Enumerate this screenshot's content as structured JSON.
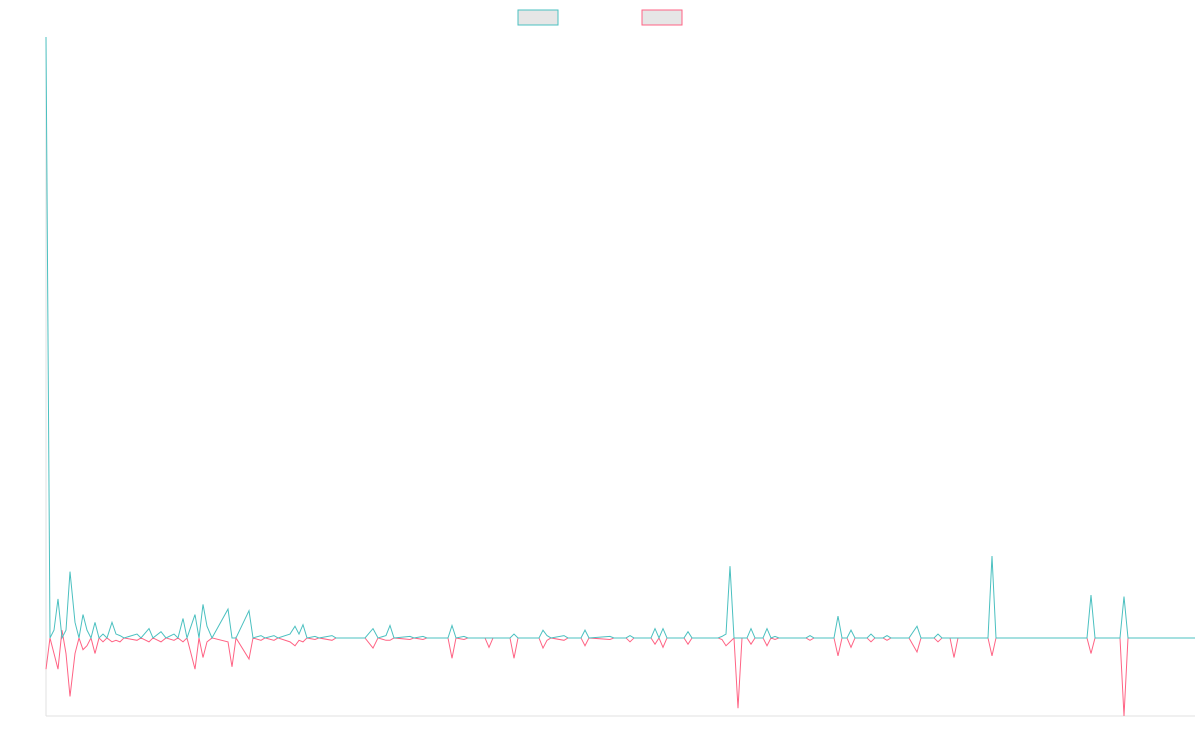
{
  "chart_data": {
    "type": "line",
    "x": [
      0,
      4,
      8,
      12,
      16,
      20,
      24,
      29,
      33,
      37,
      41,
      45,
      49,
      53,
      57,
      61,
      66,
      70,
      74,
      78,
      91,
      95,
      103,
      107,
      115,
      120,
      128,
      132,
      137,
      141,
      149,
      153,
      157,
      161,
      166,
      182,
      186,
      190,
      203,
      207,
      215,
      219,
      228,
      232,
      244,
      249,
      253,
      257,
      261,
      269,
      273,
      286,
      290,
      319,
      327,
      332,
      340,
      344,
      348,
      364,
      368,
      377,
      381,
      402,
      406,
      410,
      418,
      422,
      439,
      443,
      447,
      464,
      468,
      472,
      493,
      497,
      501,
      505,
      518,
      522,
      535,
      539,
      543,
      564,
      568,
      580,
      584,
      588,
      605,
      609,
      613,
      617,
      621,
      638,
      642,
      646,
      672,
      676,
      680,
      684,
      688,
      692,
      696,
      701,
      705,
      709,
      717,
      721,
      725,
      729,
      733,
      760,
      764,
      768,
      788,
      792,
      796,
      801,
      805,
      809,
      821,
      825,
      829,
      837,
      841,
      845,
      863,
      871,
      875,
      888,
      892,
      896,
      904,
      908,
      912,
      942,
      946,
      950,
      1041,
      1045,
      1049,
      1074,
      1078,
      1082,
      1149
    ],
    "series": [
      {
        "color": "#4bc0c0",
        "values": [
          77,
          0,
          1,
          5,
          0,
          1,
          8.5,
          2,
          0,
          3,
          1,
          0,
          2,
          0,
          0.5,
          0,
          2,
          0.5,
          0.3,
          0,
          0.5,
          0,
          1.2,
          0,
          0.8,
          0,
          0.5,
          0,
          2.5,
          0,
          3,
          0,
          4.3,
          1.5,
          0,
          3.7,
          0,
          0,
          3.5,
          0,
          0.3,
          0,
          0.3,
          0,
          0.5,
          1.5,
          0.5,
          1.7,
          0,
          0.2,
          0,
          0.3,
          0,
          0,
          1.2,
          0,
          0.3,
          1.6,
          0,
          0.2,
          0,
          0.2,
          0,
          0,
          1.6,
          0,
          0.2,
          0,
          0,
          0,
          0,
          0,
          0.5,
          0,
          0,
          1,
          0.3,
          0,
          0.3,
          0,
          0,
          1,
          0,
          0.2,
          0,
          0,
          0.3,
          0,
          0,
          1.2,
          0,
          1.2,
          0,
          0,
          0.8,
          0,
          0,
          0.2,
          0.5,
          9.2,
          0,
          0,
          0,
          0,
          1.2,
          0,
          0,
          1.2,
          0,
          0.2,
          0,
          0,
          0.3,
          0,
          0,
          2.8,
          0,
          0,
          1,
          0,
          0,
          0.5,
          0,
          0,
          0.3,
          0,
          0,
          1.5,
          0,
          0,
          0.5,
          0,
          0,
          0,
          0,
          0,
          10.5,
          0,
          0,
          5.5,
          0,
          0,
          5.3,
          0,
          0
        ]
      },
      {
        "color": "#ff6384",
        "values": [
          -4,
          0,
          -2,
          -4,
          1,
          -2,
          -7.5,
          -2,
          0,
          -1.5,
          -1,
          0,
          -2,
          0,
          -0.5,
          0,
          -0.5,
          -0.3,
          -0.5,
          0,
          -0.3,
          0,
          -0.5,
          0,
          -0.5,
          0,
          -0.3,
          0,
          -0.5,
          0,
          -4,
          0,
          -2.5,
          -0.5,
          0,
          -0.5,
          -3.7,
          0,
          -2.7,
          0,
          -0.3,
          0,
          -0.3,
          0,
          -0.5,
          -1,
          -0.3,
          -0.5,
          0,
          -0.2,
          0,
          -0.3,
          0,
          0,
          -1.3,
          0,
          -0.3,
          -0.3,
          0,
          -0.2,
          0,
          -0.2,
          0,
          0,
          -2.6,
          0,
          -0.2,
          0,
          0,
          -1.2,
          0,
          0,
          -2.6,
          0,
          0,
          -1.3,
          -0.3,
          0,
          -0.3,
          0,
          0,
          -1,
          0,
          -0.2,
          0,
          0,
          -0.5,
          0,
          0,
          -0.8,
          0,
          -1.2,
          0,
          0,
          -0.8,
          0,
          0,
          -0.2,
          -1,
          -0.5,
          0,
          -9,
          0,
          0,
          -0.8,
          0,
          0,
          -1,
          0,
          -0.2,
          0,
          0,
          -0.3,
          0,
          0,
          -2.3,
          0,
          0,
          -1.2,
          0,
          0,
          -0.5,
          0,
          0,
          -0.3,
          0,
          0,
          -1.8,
          0,
          0,
          -0.5,
          0,
          0,
          -2.5,
          0,
          0,
          -2.3,
          0,
          0,
          -2,
          0,
          0,
          -10,
          0,
          0
        ]
      }
    ],
    "xlim": [
      0,
      1149
    ],
    "ylim": [
      -10,
      77
    ]
  }
}
